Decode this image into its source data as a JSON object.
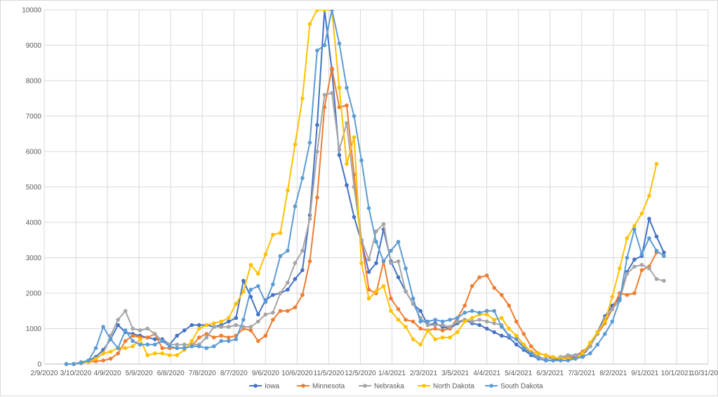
{
  "chart_data": {
    "type": "line",
    "title": "",
    "xlabel": "",
    "ylabel": "",
    "x_axis": {
      "type": "date",
      "min": "2020-02-09",
      "max": "2021-10-31",
      "ticks": [
        "2020-02-09",
        "2020-03-10",
        "2020-04-09",
        "2020-05-09",
        "2020-06-08",
        "2020-07-08",
        "2020-08-07",
        "2020-09-06",
        "2020-10-06",
        "2020-11-05",
        "2020-12-05",
        "2021-01-04",
        "2021-02-03",
        "2021-03-05",
        "2021-04-04",
        "2021-05-04",
        "2021-06-03",
        "2021-07-03",
        "2021-08-02",
        "2021-09-01",
        "2021-10-01",
        "2021-10-31"
      ],
      "tick_labels": [
        "2/9/2020",
        "3/10/2020",
        "4/9/2020",
        "5/9/2020",
        "6/8/2020",
        "7/8/2020",
        "8/7/2020",
        "9/6/2020",
        "10/6/2020",
        "11/5/2020",
        "12/5/2020",
        "1/4/2021",
        "2/3/2021",
        "3/5/2021",
        "4/4/2021",
        "5/4/2021",
        "6/3/2021",
        "7/3/2021",
        "8/2/2021",
        "9/1/2021",
        "10/1/2021",
        "10/31/2021"
      ]
    },
    "ylim": [
      0,
      10000
    ],
    "y_ticks": [
      0,
      1000,
      2000,
      3000,
      4000,
      5000,
      6000,
      7000,
      8000,
      9000,
      10000
    ],
    "y_tick_labels": [
      "0",
      "1000",
      "2000",
      "3000",
      "4000",
      "5000",
      "6000",
      "7000",
      "8000",
      "9000",
      "10000"
    ],
    "grid": true,
    "legend_position": "bottom",
    "markers": true,
    "x": [
      "2020-03-01",
      "2020-03-08",
      "2020-03-15",
      "2020-03-22",
      "2020-03-29",
      "2020-04-05",
      "2020-04-12",
      "2020-04-19",
      "2020-04-26",
      "2020-05-03",
      "2020-05-10",
      "2020-05-17",
      "2020-05-24",
      "2020-05-31",
      "2020-06-07",
      "2020-06-14",
      "2020-06-21",
      "2020-06-28",
      "2020-07-05",
      "2020-07-12",
      "2020-07-19",
      "2020-07-26",
      "2020-08-02",
      "2020-08-09",
      "2020-08-16",
      "2020-08-23",
      "2020-08-30",
      "2020-09-06",
      "2020-09-13",
      "2020-09-20",
      "2020-09-27",
      "2020-10-04",
      "2020-10-11",
      "2020-10-18",
      "2020-10-25",
      "2020-11-01",
      "2020-11-08",
      "2020-11-15",
      "2020-11-22",
      "2020-11-29",
      "2020-12-06",
      "2020-12-13",
      "2020-12-20",
      "2020-12-27",
      "2021-01-03",
      "2021-01-10",
      "2021-01-17",
      "2021-01-24",
      "2021-01-31",
      "2021-02-07",
      "2021-02-14",
      "2021-02-21",
      "2021-02-28",
      "2021-03-07",
      "2021-03-14",
      "2021-03-21",
      "2021-03-28",
      "2021-04-04",
      "2021-04-11",
      "2021-04-18",
      "2021-04-25",
      "2021-05-02",
      "2021-05-09",
      "2021-05-16",
      "2021-05-23",
      "2021-05-30",
      "2021-06-06",
      "2021-06-13",
      "2021-06-20",
      "2021-06-27",
      "2021-07-04",
      "2021-07-11",
      "2021-07-18",
      "2021-07-25",
      "2021-08-01",
      "2021-08-08",
      "2021-08-15",
      "2021-08-22",
      "2021-08-29",
      "2021-09-05",
      "2021-09-12",
      "2021-09-19",
      "2021-09-26"
    ],
    "series": [
      {
        "name": "Iowa",
        "color": "#4472C4",
        "values": [
          0,
          0,
          50,
          100,
          200,
          400,
          700,
          1100,
          900,
          850,
          800,
          750,
          700,
          700,
          550,
          800,
          950,
          1100,
          1100,
          1100,
          1050,
          1100,
          1200,
          1300,
          2350,
          1900,
          1400,
          1800,
          1950,
          2000,
          2100,
          2400,
          2650,
          4200,
          6750,
          10000,
          8300,
          5900,
          5050,
          4150,
          3450,
          2600,
          2850,
          3800,
          2900,
          2450,
          2050,
          1700,
          1500,
          1100,
          1150,
          1050,
          1000,
          1150,
          1250,
          1150,
          1100,
          1000,
          900,
          800,
          750,
          550,
          400,
          250,
          150,
          100,
          100,
          150,
          150,
          200,
          250,
          500,
          900,
          1350,
          1650,
          1850,
          2600,
          2950,
          3050,
          4100,
          3600,
          3150,
          null
        ]
      },
      {
        "name": "Minnesota",
        "color": "#ED7D31",
        "values": [
          0,
          0,
          30,
          60,
          80,
          100,
          150,
          300,
          650,
          800,
          750,
          750,
          850,
          450,
          450,
          450,
          450,
          500,
          750,
          850,
          750,
          800,
          750,
          800,
          1000,
          950,
          650,
          800,
          1250,
          1500,
          1500,
          1600,
          1950,
          2900,
          4700,
          7250,
          8350,
          7250,
          7300,
          5350,
          3500,
          2100,
          2000,
          2900,
          1850,
          1550,
          1250,
          1200,
          1000,
          950,
          1000,
          950,
          1000,
          1300,
          1650,
          2200,
          2450,
          2500,
          2150,
          1950,
          1650,
          1200,
          850,
          500,
          300,
          250,
          150,
          150,
          200,
          250,
          350,
          550,
          850,
          1150,
          1550,
          2000,
          1950,
          2000,
          2650,
          2750,
          3150,
          null,
          null
        ]
      },
      {
        "name": "Nebraska",
        "color": "#A5A5A5",
        "values": [
          0,
          0,
          40,
          80,
          150,
          300,
          800,
          1250,
          1500,
          1000,
          950,
          1000,
          850,
          650,
          550,
          550,
          550,
          550,
          550,
          750,
          1050,
          1050,
          1050,
          1100,
          1050,
          1050,
          1200,
          1400,
          1450,
          2000,
          2300,
          2850,
          3200,
          4100,
          6000,
          7600,
          7650,
          6050,
          6800,
          5000,
          3500,
          2950,
          3750,
          3950,
          2850,
          2900,
          2050,
          1700,
          1300,
          1100,
          1100,
          1100,
          1050,
          1200,
          1250,
          1200,
          1250,
          1200,
          1150,
          1100,
          800,
          700,
          500,
          350,
          200,
          150,
          150,
          200,
          250,
          250,
          300,
          500,
          850,
          1300,
          1550,
          1800,
          2550,
          2750,
          2800,
          2700,
          2400,
          2350,
          null
        ]
      },
      {
        "name": "North Dakota",
        "color": "#FFC000",
        "values": [
          0,
          0,
          20,
          60,
          150,
          300,
          350,
          450,
          450,
          500,
          700,
          250,
          300,
          300,
          250,
          250,
          400,
          650,
          1000,
          1100,
          1150,
          1200,
          1300,
          1700,
          2050,
          2800,
          2550,
          3100,
          3650,
          3700,
          4900,
          6200,
          7500,
          9600,
          10100,
          10200,
          10200,
          7800,
          5650,
          6400,
          2850,
          1850,
          2050,
          2200,
          1500,
          1250,
          1050,
          700,
          550,
          950,
          700,
          750,
          750,
          900,
          1200,
          1300,
          1400,
          1400,
          1250,
          1300,
          1000,
          800,
          550,
          350,
          300,
          250,
          200,
          150,
          150,
          150,
          300,
          600,
          900,
          1200,
          1900,
          2700,
          3550,
          3900,
          4250,
          4750,
          5650,
          null,
          null
        ]
      },
      {
        "name": "South Dakota",
        "color": "#5B9BD5",
        "values": [
          0,
          0,
          30,
          100,
          450,
          1050,
          700,
          450,
          950,
          650,
          550,
          550,
          550,
          650,
          500,
          450,
          450,
          500,
          500,
          450,
          500,
          650,
          650,
          700,
          1250,
          2100,
          2200,
          1750,
          2250,
          3050,
          3200,
          4450,
          5250,
          6250,
          8850,
          9000,
          10000,
          9050,
          7800,
          7000,
          5750,
          4400,
          3450,
          2900,
          3200,
          3450,
          2700,
          1850,
          1200,
          1200,
          1250,
          1200,
          1250,
          1300,
          1450,
          1500,
          1450,
          1500,
          1500,
          1050,
          800,
          700,
          450,
          300,
          150,
          100,
          100,
          100,
          100,
          150,
          200,
          300,
          550,
          850,
          1200,
          1800,
          3000,
          3800,
          3100,
          3550,
          3200,
          3050,
          null
        ]
      }
    ]
  }
}
